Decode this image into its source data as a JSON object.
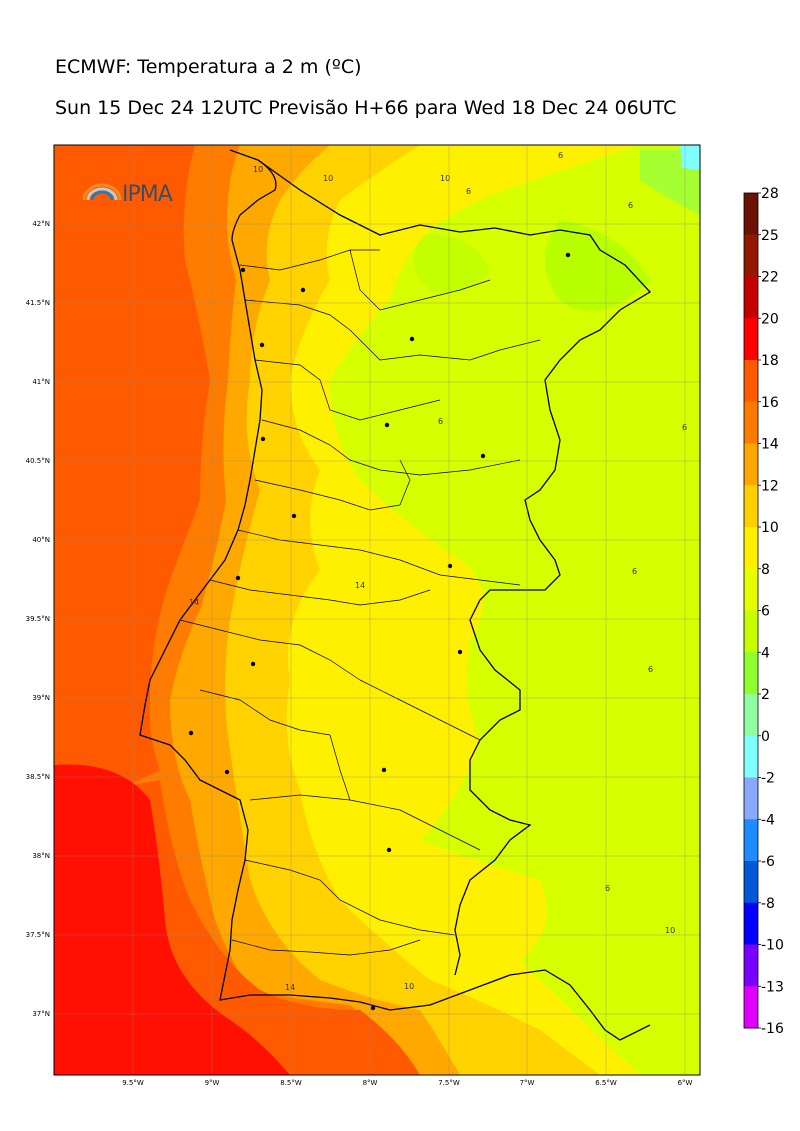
{
  "header": {
    "title": "ECMWF: Temperatura a 2 m (ºC)",
    "subtitle": "Sun 15 Dec 24 12UTC Previsão H+66 para Wed 18 Dec 24 06UTC"
  },
  "logo": {
    "text": "IPMA",
    "icon": "rainbow-arc-icon"
  },
  "map": {
    "region": "Portugal (mainland)",
    "lat_ticks": [
      "42°N",
      "41.5°N",
      "41°N",
      "40.5°N",
      "40°N",
      "39.5°N",
      "39°N",
      "38.5°N",
      "38°N",
      "37.5°N",
      "37°N"
    ],
    "lon_ticks": [
      "9.5°W",
      "9°W",
      "8.5°W",
      "8°W",
      "7.5°W",
      "7°W",
      "6.5°W",
      "6°W"
    ],
    "isoline_labels": [
      "10",
      "10",
      "6",
      "6",
      "6",
      "6",
      "6",
      "6",
      "10",
      "14",
      "14",
      "10",
      "14",
      "6",
      "6",
      "10"
    ]
  },
  "colorbar": {
    "levels": [
      "28",
      "25",
      "22",
      "20",
      "18",
      "16",
      "14",
      "12",
      "10",
      "8",
      "6",
      "4",
      "2",
      "0",
      "-2",
      "-4",
      "-6",
      "-8",
      "-10",
      "-13",
      "-16"
    ],
    "colors": [
      "#6b1200",
      "#921800",
      "#c60000",
      "#ff0000",
      "#ff5a00",
      "#ff7a00",
      "#ffa600",
      "#ffcf00",
      "#fff000",
      "#e5ff00",
      "#c8ff00",
      "#90ff30",
      "#8fffa0",
      "#80ffff",
      "#8aa8ff",
      "#1c8cff",
      "#0059d9",
      "#0000ff",
      "#7a00ff",
      "#e000ff"
    ]
  }
}
